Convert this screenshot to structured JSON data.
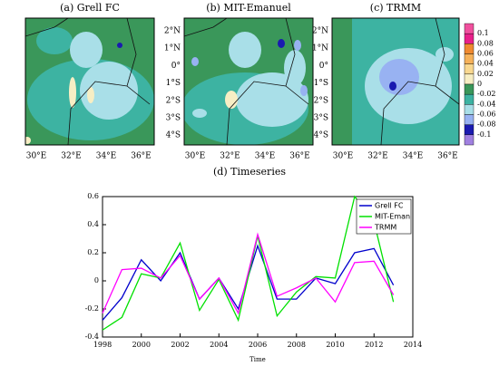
{
  "maps": [
    {
      "title": "(a) Grell FC",
      "lon_labels": [
        "30°E",
        "32°E",
        "34°E",
        "36°E"
      ]
    },
    {
      "title": "(b) MIT-Emanuel",
      "lat_labels": [
        "2°N",
        "1°N",
        "0°",
        "1°S",
        "2°S",
        "3°S",
        "4°S"
      ],
      "lon_labels": [
        "30°E",
        "32°E",
        "34°E",
        "36°E"
      ]
    },
    {
      "title": "(c) TRMM",
      "lat_labels": [
        "2°N",
        "1°N",
        "0°",
        "1°S",
        "2°S",
        "3°S",
        "4°S"
      ],
      "lon_labels": [
        "30°E",
        "32°E",
        "34°E",
        "36°E"
      ]
    }
  ],
  "colorbar": {
    "levels": [
      0.1,
      0.08,
      0.06,
      0.04,
      0.02,
      0,
      -0.02,
      -0.04,
      -0.06,
      -0.08,
      -0.1
    ],
    "colors": [
      "#f0509e",
      "#e8208a",
      "#f08a30",
      "#f6b25a",
      "#f9d890",
      "#f7eec4",
      "#3a975a",
      "#3db3a2",
      "#a9dfe8",
      "#98b2f2",
      "#1a1ab0",
      "#a080e0"
    ]
  },
  "chart_data": {
    "type": "line",
    "title": "(d) Timeseries",
    "x_label": "Time",
    "x": [
      1998,
      1999,
      2000,
      2001,
      2002,
      2003,
      2004,
      2005,
      2006,
      2007,
      2008,
      2009,
      2010,
      2011,
      2012,
      2013
    ],
    "series": [
      {
        "name": "Grell FC",
        "color": "#0000cc",
        "values": [
          -0.28,
          -0.12,
          0.15,
          0.0,
          0.2,
          -0.13,
          0.02,
          -0.2,
          0.25,
          -0.13,
          -0.13,
          0.02,
          -0.02,
          0.2,
          0.23,
          -0.03
        ]
      },
      {
        "name": "MIT-Eman",
        "color": "#00e000",
        "values": [
          -0.35,
          -0.26,
          0.05,
          0.02,
          0.27,
          -0.21,
          0.01,
          -0.28,
          0.32,
          -0.25,
          -0.08,
          0.03,
          0.02,
          0.6,
          0.42,
          -0.15
        ]
      },
      {
        "name": "TRMM",
        "color": "#ff00ff",
        "values": [
          -0.23,
          0.08,
          0.09,
          0.02,
          0.18,
          -0.13,
          0.02,
          -0.23,
          0.33,
          -0.11,
          -0.05,
          0.02,
          -0.15,
          0.13,
          0.14,
          -0.1
        ]
      }
    ],
    "xlim": [
      1998,
      2014
    ],
    "xticks": [
      1998,
      2000,
      2002,
      2004,
      2006,
      2008,
      2010,
      2012,
      2014
    ],
    "ylim": [
      -0.4,
      0.6
    ],
    "yticks": [
      -0.4,
      -0.2,
      0,
      0.2,
      0.4,
      0.6
    ],
    "legend": "upper right"
  }
}
